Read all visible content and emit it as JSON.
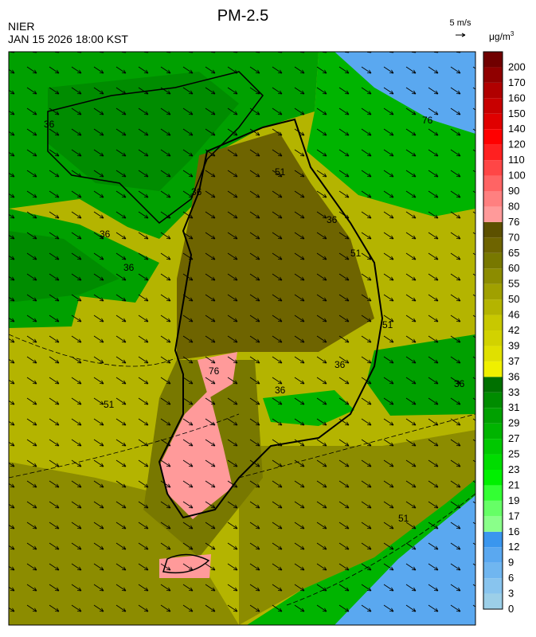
{
  "header": {
    "title": "PM-2.5",
    "agency": "NIER",
    "datetime": "JAN 15 2026 18:00 KST"
  },
  "wind_reference": {
    "label": "5 m/s"
  },
  "colorbar": {
    "unit": "μg/m",
    "unit_power": "3",
    "ticks": [
      0,
      3,
      6,
      9,
      12,
      16,
      17,
      19,
      21,
      23,
      25,
      27,
      29,
      31,
      33,
      36,
      37,
      39,
      42,
      46,
      50,
      55,
      60,
      65,
      70,
      76,
      80,
      90,
      100,
      110,
      120,
      140,
      150,
      160,
      170,
      200
    ],
    "colors": [
      "#9ccfe8",
      "#88c4ee",
      "#70b6f0",
      "#5aa8f0",
      "#3a96ee",
      "#8aff8a",
      "#66ff66",
      "#33ff33",
      "#00f000",
      "#00dc00",
      "#00c800",
      "#00b400",
      "#00a000",
      "#008c00",
      "#007000",
      "#f0f000",
      "#e0e000",
      "#d2d200",
      "#c8c800",
      "#b4b400",
      "#a0a000",
      "#8c8c00",
      "#787800",
      "#6e6400",
      "#5c5000",
      "#ff9a9a",
      "#ff8080",
      "#ff6464",
      "#ff4646",
      "#ff2020",
      "#ff0000",
      "#e00000",
      "#c80000",
      "#b00000",
      "#900000",
      "#700000"
    ]
  },
  "contour_labels": [
    "36",
    "36",
    "36",
    "51",
    "51",
    "51",
    "51",
    "76",
    "36",
    "36",
    "36",
    "51",
    "36",
    "36",
    "76"
  ]
}
